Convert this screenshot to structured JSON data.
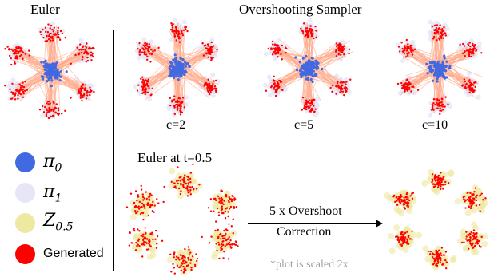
{
  "titles": {
    "euler": "Euler",
    "overshooting": "Overshooting Sampler",
    "euler_half": "Euler at t=0.5"
  },
  "panels": {
    "c_labels": [
      "c=2",
      "c=5",
      "c=10"
    ]
  },
  "legend": [
    {
      "symbol": "π",
      "sub": "0",
      "color": "#4169e1"
    },
    {
      "symbol": "π",
      "sub": "1",
      "color": "#e6e6f8"
    },
    {
      "symbol": "Z",
      "sub": "0.5",
      "color": "#eee8a0"
    },
    {
      "label": "Generated",
      "color": "#ff0000"
    }
  ],
  "arrow": {
    "line1": "5 x Overshoot",
    "line2": "Correction"
  },
  "note": "*plot is scaled 2x",
  "colors": {
    "pi0": "#4169e1",
    "pi1": "#e6e6f8",
    "z05": "#eee8a0",
    "generated": "#ff0000",
    "trajectory": "#ffa888"
  }
}
